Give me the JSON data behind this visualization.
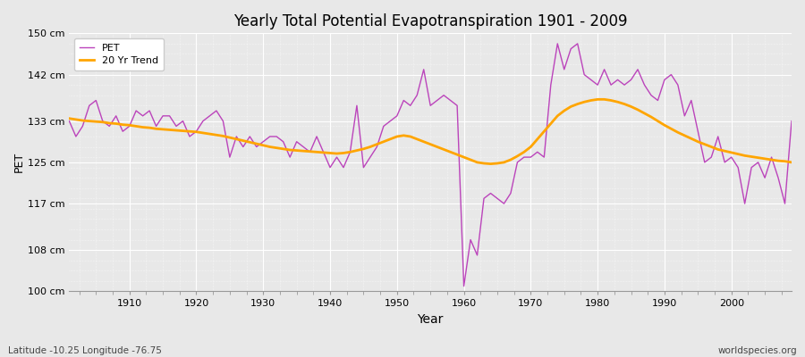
{
  "title": "Yearly Total Potential Evapotranspiration 1901 - 2009",
  "xlabel": "Year",
  "ylabel": "PET",
  "subtitle": "Latitude -10.25 Longitude -76.75",
  "watermark": "worldspecies.org",
  "pet_color": "#BB44BB",
  "trend_color": "#FFA500",
  "background_color": "#E8E8E8",
  "plot_bg_color": "#E8E8E8",
  "grid_major_color": "#CCCCCC",
  "grid_minor_color": "#DDDDDD",
  "ylim": [
    100,
    150
  ],
  "yticks": [
    100,
    108,
    117,
    125,
    133,
    142,
    150
  ],
  "ytick_labels": [
    "100 cm",
    "108 cm",
    "117 cm",
    "125 cm",
    "133 cm",
    "142 cm",
    "150 cm"
  ],
  "xlim": [
    1901,
    2009
  ],
  "xticks": [
    1910,
    1920,
    1930,
    1940,
    1950,
    1960,
    1970,
    1980,
    1990,
    2000
  ],
  "years": [
    1901,
    1902,
    1903,
    1904,
    1905,
    1906,
    1907,
    1908,
    1909,
    1910,
    1911,
    1912,
    1913,
    1914,
    1915,
    1916,
    1917,
    1918,
    1919,
    1920,
    1921,
    1922,
    1923,
    1924,
    1925,
    1926,
    1927,
    1928,
    1929,
    1930,
    1931,
    1932,
    1933,
    1934,
    1935,
    1936,
    1937,
    1938,
    1939,
    1940,
    1941,
    1942,
    1943,
    1944,
    1945,
    1946,
    1947,
    1948,
    1949,
    1950,
    1951,
    1952,
    1953,
    1954,
    1955,
    1956,
    1957,
    1958,
    1959,
    1960,
    1961,
    1962,
    1963,
    1964,
    1965,
    1966,
    1967,
    1968,
    1969,
    1970,
    1971,
    1972,
    1973,
    1974,
    1975,
    1976,
    1977,
    1978,
    1979,
    1980,
    1981,
    1982,
    1983,
    1984,
    1985,
    1986,
    1987,
    1988,
    1989,
    1990,
    1991,
    1992,
    1993,
    1994,
    1995,
    1996,
    1997,
    1998,
    1999,
    2000,
    2001,
    2002,
    2003,
    2004,
    2005,
    2006,
    2007,
    2008,
    2009
  ],
  "pet_values": [
    133,
    130,
    132,
    136,
    137,
    133,
    132,
    134,
    131,
    132,
    135,
    134,
    135,
    132,
    134,
    134,
    132,
    133,
    130,
    131,
    133,
    134,
    135,
    133,
    126,
    130,
    128,
    130,
    128,
    129,
    130,
    130,
    129,
    126,
    129,
    128,
    127,
    130,
    127,
    124,
    126,
    124,
    127,
    136,
    124,
    126,
    128,
    132,
    133,
    134,
    137,
    136,
    138,
    143,
    136,
    137,
    138,
    137,
    136,
    101,
    110,
    107,
    118,
    119,
    118,
    117,
    119,
    125,
    126,
    126,
    127,
    126,
    140,
    148,
    143,
    147,
    148,
    142,
    141,
    140,
    143,
    140,
    141,
    140,
    141,
    143,
    140,
    138,
    137,
    141,
    142,
    140,
    134,
    137,
    131,
    125,
    126,
    130,
    125,
    126,
    124,
    117,
    124,
    125,
    122,
    126,
    122,
    117,
    133
  ],
  "trend_values": [
    133.5,
    133.3,
    133.1,
    133.0,
    132.9,
    132.8,
    132.6,
    132.5,
    132.3,
    132.2,
    132.0,
    131.8,
    131.7,
    131.5,
    131.4,
    131.3,
    131.2,
    131.1,
    131.0,
    130.9,
    130.7,
    130.5,
    130.3,
    130.1,
    129.8,
    129.5,
    129.2,
    128.9,
    128.6,
    128.3,
    128.0,
    127.8,
    127.6,
    127.4,
    127.3,
    127.2,
    127.1,
    127.0,
    126.9,
    126.8,
    126.7,
    126.8,
    127.0,
    127.3,
    127.6,
    128.0,
    128.5,
    129.0,
    129.5,
    130.0,
    130.2,
    130.0,
    129.5,
    129.0,
    128.5,
    128.0,
    127.5,
    127.0,
    126.5,
    126.0,
    125.5,
    125.0,
    124.8,
    124.7,
    124.8,
    125.0,
    125.5,
    126.2,
    127.0,
    128.0,
    129.5,
    131.0,
    132.5,
    134.0,
    135.0,
    135.8,
    136.3,
    136.7,
    137.0,
    137.2,
    137.2,
    137.0,
    136.7,
    136.3,
    135.8,
    135.2,
    134.5,
    133.8,
    133.0,
    132.2,
    131.5,
    130.8,
    130.2,
    129.6,
    129.0,
    128.5,
    128.0,
    127.5,
    127.2,
    126.9,
    126.6,
    126.3,
    126.1,
    125.9,
    125.7,
    125.5,
    125.3,
    125.2,
    125.0
  ]
}
